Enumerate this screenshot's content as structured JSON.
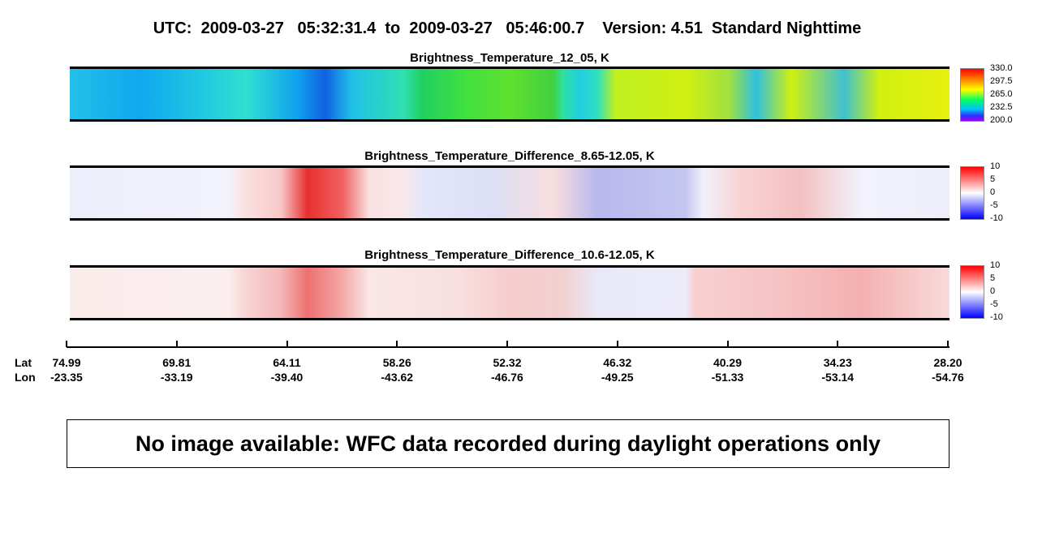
{
  "title": "UTC:  2009-03-27   05:32:31.4  to  2009-03-27   05:46:00.7    Version: 4.51  Standard Nighttime",
  "panels": [
    {
      "title": "Brightness_Temperature_12_05, K",
      "colorbar_ticks": [
        "330.0",
        "297.5",
        "265.0",
        "232.5",
        "200.0"
      ]
    },
    {
      "title": "Brightness_Temperature_Difference_8.65-12.05, K",
      "colorbar_ticks": [
        "10",
        "5",
        "0",
        "-5",
        "-10"
      ]
    },
    {
      "title": "Brightness_Temperature_Difference_10.6-12.05, K",
      "colorbar_ticks": [
        "10",
        "5",
        "0",
        "-5",
        "-10"
      ]
    }
  ],
  "axis": {
    "row_labels": [
      "Lat",
      "Lon"
    ],
    "ticks": [
      {
        "lat": "74.99",
        "lon": "-23.35"
      },
      {
        "lat": "69.81",
        "lon": "-33.19"
      },
      {
        "lat": "64.11",
        "lon": "-39.40"
      },
      {
        "lat": "58.26",
        "lon": "-43.62"
      },
      {
        "lat": "52.32",
        "lon": "-46.76"
      },
      {
        "lat": "46.32",
        "lon": "-49.25"
      },
      {
        "lat": "40.29",
        "lon": "-51.33"
      },
      {
        "lat": "34.23",
        "lon": "-53.14"
      },
      {
        "lat": "28.20",
        "lon": "-54.76"
      }
    ]
  },
  "message": "No image available: WFC data recorded during daylight operations only"
}
